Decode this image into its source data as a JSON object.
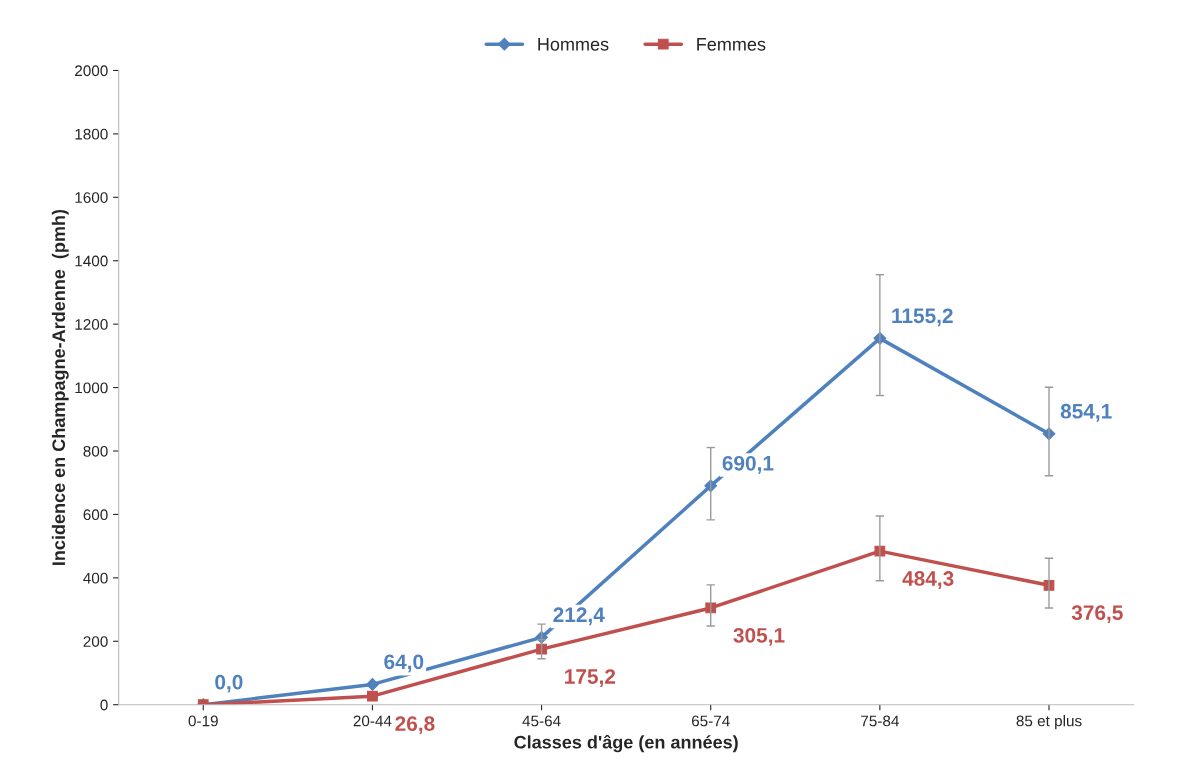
{
  "chart_data": {
    "type": "line",
    "xlabel": "Classes d'âge (en années)",
    "ylabel": "Incidence en Champagne-Ardenne  (pmh)",
    "categories": [
      "0-19",
      "20-44",
      "45-64",
      "65-74",
      "75-84",
      "85 et plus"
    ],
    "series": [
      {
        "name": "Hommes",
        "color": "#4f81bd",
        "marker": "diamond",
        "values": [
          0.0,
          64.0,
          212.4,
          690.1,
          1155.2,
          854.1
        ],
        "value_labels": [
          "0,0",
          "64,0",
          "212,4",
          "690,1",
          "1155,2",
          "854,1"
        ],
        "errors": [
          null,
          null,
          [
            180,
            254
          ],
          [
            583,
            811
          ],
          [
            975,
            1356
          ],
          [
            722,
            1001
          ]
        ]
      },
      {
        "name": "Femmes",
        "color": "#c0504d",
        "marker": "square",
        "values": [
          0.0,
          26.8,
          175.2,
          305.1,
          484.3,
          376.5
        ],
        "value_labels": [
          null,
          "26,8",
          "175,2",
          "305,1",
          "484,3",
          "376,5"
        ],
        "errors": [
          null,
          null,
          [
            145,
            205
          ],
          [
            248,
            378
          ],
          [
            391,
            595
          ],
          [
            305,
            462
          ]
        ]
      }
    ],
    "ylim": [
      0,
      2000
    ],
    "yticks": [
      0,
      200,
      400,
      600,
      800,
      1000,
      1200,
      1400,
      1600,
      1800,
      2000
    ],
    "grid": false,
    "legend": "top",
    "line_style": "solid"
  }
}
